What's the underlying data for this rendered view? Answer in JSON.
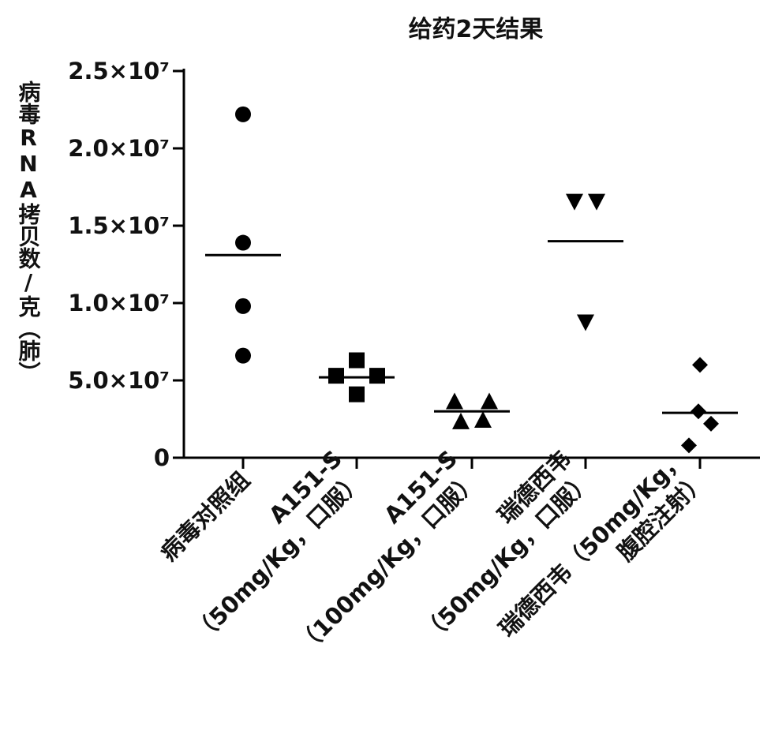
{
  "chart_data": {
    "type": "scatter",
    "title": "给药2天结果",
    "ylabel": "病毒RNA拷贝数/克（肺）",
    "ylim": [
      0,
      25000000
    ],
    "y_ticks": [
      {
        "value": 0,
        "label": "0"
      },
      {
        "value": 5000000,
        "label": "5.0×10⁷"
      },
      {
        "value": 10000000,
        "label": "1.0×10⁷"
      },
      {
        "value": 15000000,
        "label": "1.5×10⁷"
      },
      {
        "value": 20000000,
        "label": "2.0×10⁷"
      },
      {
        "value": 25000000,
        "label": "2.5×10⁷"
      }
    ],
    "categories": [
      {
        "lines": [
          "病毒对照组"
        ]
      },
      {
        "lines": [
          "A151-S",
          "（50mg/Kg，口服）"
        ]
      },
      {
        "lines": [
          "A151-S",
          "（100mg/Kg，口服）"
        ]
      },
      {
        "lines": [
          "瑞德西韦",
          "（50mg/Kg，口服）"
        ]
      },
      {
        "lines": [
          "瑞德西韦（50mg/Kg，",
          "腹腔注射）"
        ]
      }
    ],
    "series": [
      {
        "marker": "circle",
        "values": [
          22200000,
          13900000,
          9800000,
          6600000
        ],
        "mean": 13100000
      },
      {
        "marker": "square",
        "values": [
          6300000,
          5300000,
          5300000,
          4100000
        ],
        "mean": 5200000
      },
      {
        "marker": "triangle-up",
        "values": [
          3600000,
          3600000,
          2300000,
          2400000
        ],
        "mean": 3000000
      },
      {
        "marker": "triangle-down",
        "values": [
          16600000,
          16600000,
          8800000
        ],
        "mean": 14000000
      },
      {
        "marker": "diamond",
        "values": [
          6000000,
          3000000,
          2200000,
          800000
        ],
        "mean": 2900000
      }
    ],
    "grid": false,
    "legend": "none",
    "colors": {
      "marker": "#000000",
      "axis": "#000000",
      "text": "#111111"
    }
  }
}
